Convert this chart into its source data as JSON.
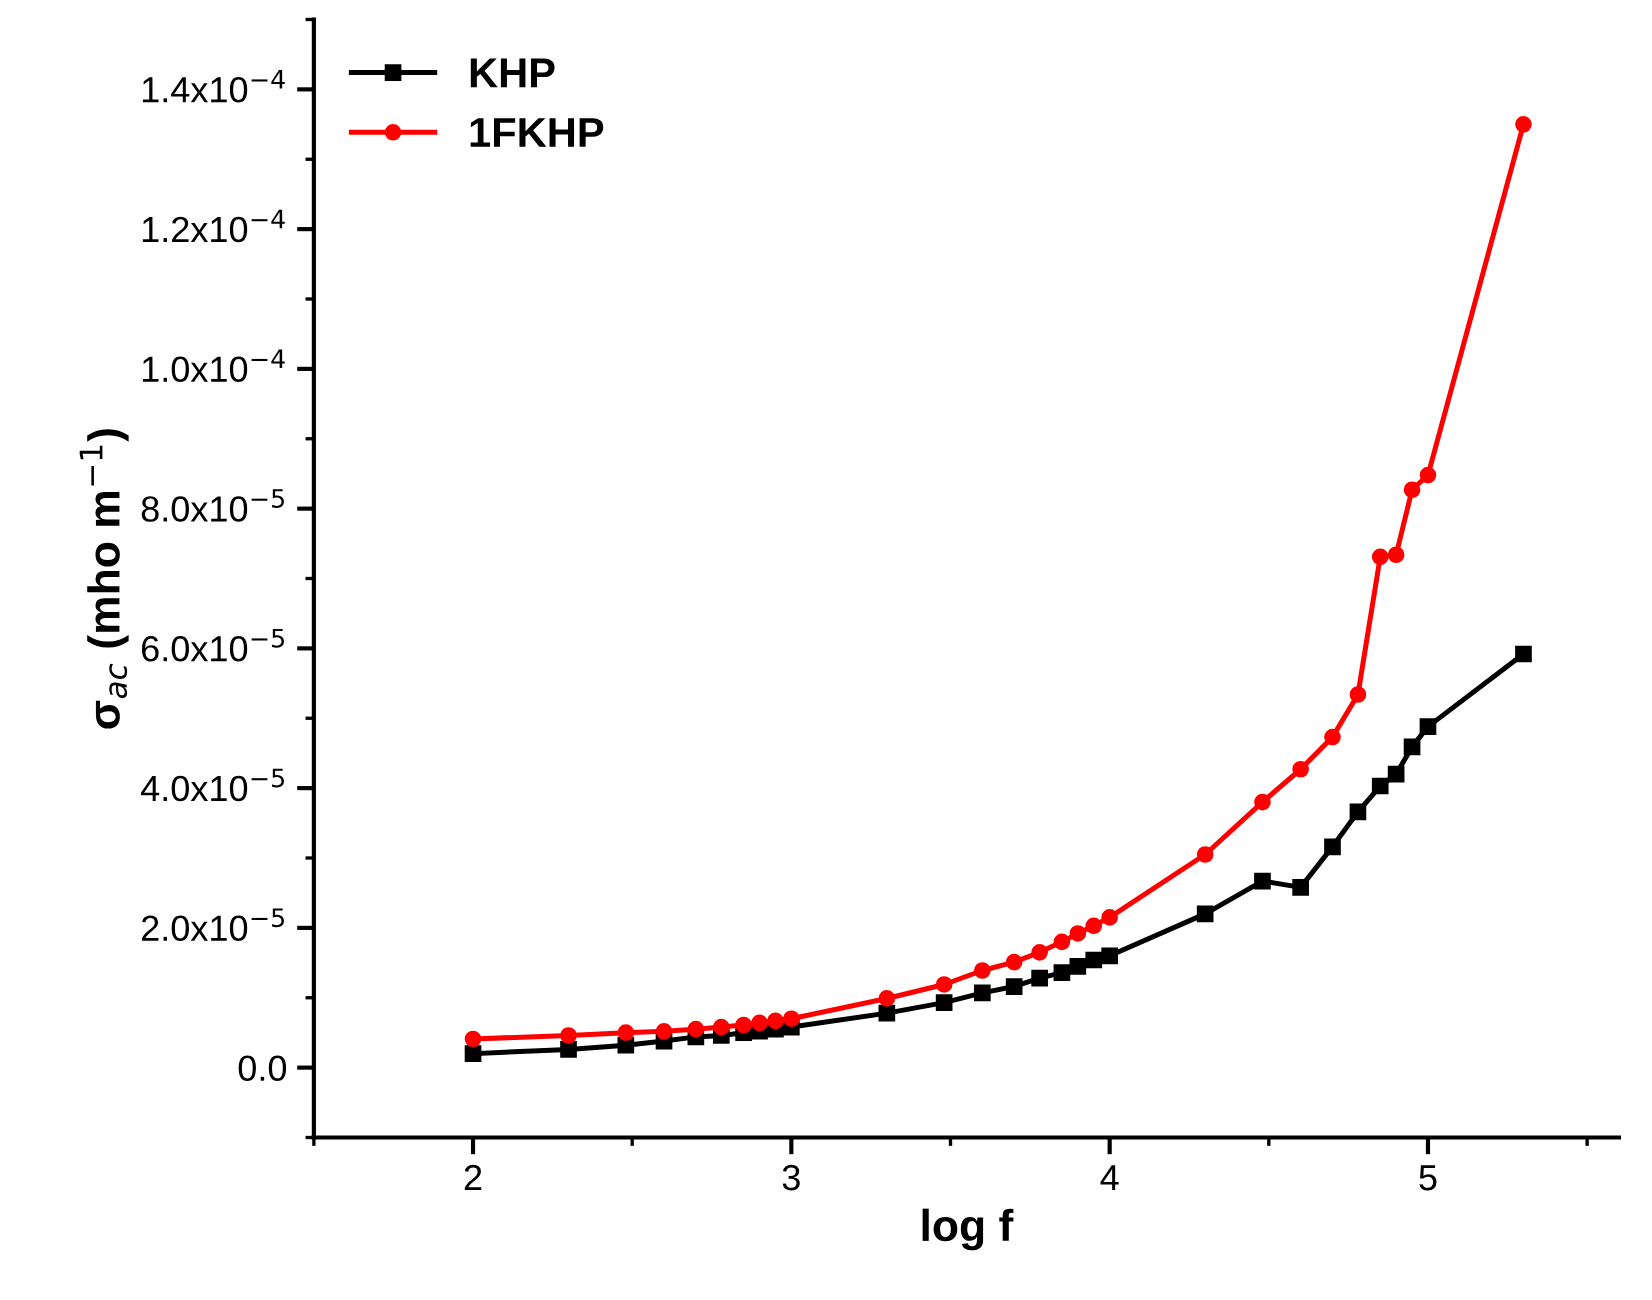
{
  "chart_data": {
    "type": "line",
    "xlabel": "log f",
    "ylabel": "σ$_{ac}$ (mho m$^{−1}$)",
    "x": [
      2,
      2.3,
      2.48,
      2.6,
      2.7,
      2.78,
      2.85,
      2.9,
      2.95,
      3,
      3.3,
      3.48,
      3.6,
      3.7,
      3.78,
      3.85,
      3.9,
      3.95,
      4,
      4.3,
      4.48,
      4.6,
      4.7,
      4.78,
      4.85,
      4.9,
      4.95,
      5,
      5.3
    ],
    "series": [
      {
        "name": "KHP",
        "color": "#000000",
        "marker": "square",
        "values": [
          2e-06,
          2.6e-06,
          3.2e-06,
          3.8e-06,
          4.4e-06,
          4.6e-06,
          5e-06,
          5.2e-06,
          5.5e-06,
          5.8e-06,
          7.8e-06,
          9.3e-06,
          1.07e-05,
          1.16e-05,
          1.28e-05,
          1.36e-05,
          1.45e-05,
          1.54e-05,
          1.6e-05,
          2.2e-05,
          2.67e-05,
          2.58e-05,
          3.16e-05,
          3.66e-05,
          4.03e-05,
          4.2e-05,
          4.59e-05,
          4.88e-05,
          5.92e-05
        ]
      },
      {
        "name": "1FKHP",
        "color": "#ff0000",
        "marker": "circle",
        "values": [
          4.1e-06,
          4.6e-06,
          5e-06,
          5.2e-06,
          5.5e-06,
          5.8e-06,
          6.1e-06,
          6.4e-06,
          6.7e-06,
          7e-06,
          9.9e-06,
          1.19e-05,
          1.39e-05,
          1.51e-05,
          1.65e-05,
          1.8e-05,
          1.92e-05,
          2.03e-05,
          2.15e-05,
          3.05e-05,
          3.8e-05,
          4.27e-05,
          4.73e-05,
          5.34e-05,
          7.31e-05,
          7.34e-05,
          8.27e-05,
          8.48e-05,
          0.000135
        ]
      }
    ],
    "xlim": [
      1.5,
      5.6
    ],
    "xticks": [
      2,
      3,
      4,
      5
    ],
    "ylim": [
      -1e-05,
      0.00015
    ],
    "yticks": [
      {
        "value": 0,
        "label": "0.0"
      },
      {
        "value": 2e-05,
        "label": "2.0x10$^{−5}$"
      },
      {
        "value": 4e-05,
        "label": "4.0x10$^{−5}$"
      },
      {
        "value": 6e-05,
        "label": "6.0x10$^{−5}$"
      },
      {
        "value": 8e-05,
        "label": "8.0x10$^{−5}$"
      },
      {
        "value": 0.0001,
        "label": "1.0x10$^{−4}$"
      },
      {
        "value": 0.00012,
        "label": "1.2x10$^{−4}$"
      },
      {
        "value": 0.00014,
        "label": "1.4x10$^{−4}$"
      }
    ],
    "legend": "top left",
    "grid": false,
    "line_style": "solid"
  }
}
